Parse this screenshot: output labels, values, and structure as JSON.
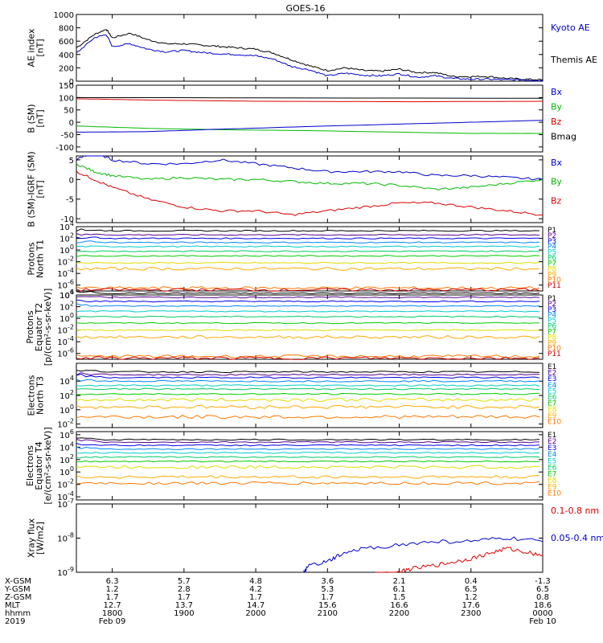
{
  "title": "GOES-16",
  "colors": {
    "blue": "#0000cc",
    "red": "#dd0000",
    "green": "#00bb00",
    "black": "#000000",
    "p": [
      "#000000",
      "#5a0090",
      "#0000ee",
      "#0088ff",
      "#00cccc",
      "#00cc66",
      "#00cc00",
      "#dddd00",
      "#ffaa00",
      "#ff7700",
      "#cc0000",
      "#880000"
    ]
  },
  "chart_data": [
    {
      "type": "line",
      "id": "ae",
      "ylabel": "AE index\n[nT]",
      "ylim": [
        0,
        1000
      ],
      "yticks": [
        "1000",
        "800",
        "600",
        "400",
        "200",
        "0"
      ],
      "legend": [
        {
          "name": "Kyoto AE",
          "color": "#0000cc"
        },
        {
          "name": "Themis AE",
          "color": "#000000"
        }
      ],
      "series": [
        {
          "name": "Themis AE",
          "color": "#000000",
          "x": [
            1730,
            1745,
            1755,
            1800,
            1815,
            1830,
            1845,
            1900,
            1915,
            1930,
            1945,
            2000,
            2015,
            2030,
            2045,
            2100,
            2115,
            2130,
            2145,
            2200,
            2215,
            2230,
            2245,
            2300,
            2315,
            2330,
            2345,
            2400
          ],
          "y": [
            500,
            700,
            780,
            650,
            720,
            620,
            560,
            560,
            540,
            520,
            500,
            480,
            420,
            320,
            230,
            160,
            200,
            160,
            150,
            180,
            130,
            130,
            70,
            70,
            70,
            40,
            30,
            20
          ]
        },
        {
          "name": "Kyoto AE",
          "color": "#0000cc",
          "x": [
            1730,
            1745,
            1755,
            1800,
            1815,
            1830,
            1845,
            1900,
            1915,
            1930,
            1945,
            2000,
            2015,
            2030,
            2045,
            2100,
            2115,
            2130,
            2145,
            2200,
            2215,
            2230,
            2245,
            2300,
            2315,
            2330,
            2345,
            2400
          ],
          "y": [
            420,
            650,
            700,
            520,
            560,
            480,
            440,
            460,
            430,
            410,
            400,
            380,
            330,
            220,
            170,
            80,
            120,
            90,
            80,
            110,
            60,
            80,
            40,
            30,
            30,
            20,
            20,
            10
          ]
        }
      ]
    },
    {
      "type": "line",
      "id": "bsm",
      "ylabel": "B (SM)\n[nT]",
      "ylim": [
        -120,
        150
      ],
      "yticks": [
        "150",
        "100",
        "50",
        "0",
        "-50",
        "-100"
      ],
      "legend": [
        {
          "name": "Bx",
          "color": "#0000cc"
        },
        {
          "name": "By",
          "color": "#00bb00"
        },
        {
          "name": "Bz",
          "color": "#dd0000"
        },
        {
          "name": "Bmag",
          "color": "#000000"
        }
      ],
      "series": [
        {
          "name": "Bmag",
          "color": "#000000",
          "x": [
            1730,
            2400
          ],
          "y": [
            100,
            97
          ]
        },
        {
          "name": "Bz",
          "color": "#dd0000",
          "x": [
            1730,
            1830,
            2000,
            2200,
            2400
          ],
          "y": [
            95,
            90,
            85,
            83,
            85
          ]
        },
        {
          "name": "By",
          "color": "#00bb00",
          "x": [
            1730,
            1830,
            1930,
            2100,
            2300,
            2400
          ],
          "y": [
            -15,
            -25,
            -30,
            -35,
            -45,
            -45
          ]
        },
        {
          "name": "Bx",
          "color": "#0000cc",
          "x": [
            1730,
            1830,
            1930,
            2100,
            2300,
            2400
          ],
          "y": [
            -40,
            -38,
            -28,
            -15,
            0,
            8
          ]
        }
      ]
    },
    {
      "type": "line",
      "id": "bdiff",
      "ylabel": "B (SM)-IGRF (SM)\n[nT]",
      "ylim": [
        -11,
        6
      ],
      "yticks": [
        "5",
        "0",
        "-5",
        "-10"
      ],
      "legend": [
        {
          "name": "Bx",
          "color": "#0000cc"
        },
        {
          "name": "By",
          "color": "#00bb00"
        },
        {
          "name": "Bz",
          "color": "#dd0000"
        }
      ],
      "series": [
        {
          "name": "Bx",
          "color": "#0000cc",
          "x": [
            1730,
            1745,
            1800,
            1830,
            1900,
            1930,
            2000,
            2030,
            2100,
            2130,
            2200,
            2230,
            2300,
            2330,
            2400
          ],
          "y": [
            5,
            7,
            5,
            4,
            4,
            5,
            4,
            3,
            2,
            2,
            2,
            1,
            1,
            0.5,
            0
          ]
        },
        {
          "name": "By",
          "color": "#00bb00",
          "x": [
            1730,
            1745,
            1800,
            1830,
            1900,
            1930,
            2000,
            2030,
            2100,
            2130,
            2200,
            2230,
            2300,
            2330,
            2400
          ],
          "y": [
            4,
            2,
            1,
            0,
            0.5,
            0,
            0,
            -0.5,
            -1,
            -1,
            -1.5,
            -2.5,
            -2,
            -1,
            0
          ]
        },
        {
          "name": "Bz",
          "color": "#dd0000",
          "x": [
            1730,
            1745,
            1800,
            1830,
            1900,
            1930,
            2000,
            2030,
            2100,
            2130,
            2200,
            2230,
            2300,
            2330,
            2400
          ],
          "y": [
            2,
            0,
            -2,
            -5,
            -7,
            -8,
            -8,
            -9,
            -8,
            -7,
            -6,
            -6,
            -7,
            -8,
            -9
          ]
        }
      ]
    },
    {
      "type": "line",
      "id": "pn",
      "ylabel": "Protons\nNorth T1",
      "log": true,
      "ylim": [
        -7,
        4
      ],
      "yticks": [
        "10^4",
        "10^2",
        "10^0",
        "10^-2",
        "10^-4",
        "10^-6"
      ],
      "legend": [
        {
          "name": "P1"
        },
        {
          "name": "P2"
        },
        {
          "name": "P3"
        },
        {
          "name": "P4"
        },
        {
          "name": "P5"
        },
        {
          "name": "P6"
        },
        {
          "name": "P7"
        },
        {
          "name": "P8"
        },
        {
          "name": "P9"
        },
        {
          "name": "P10"
        },
        {
          "name": "P11"
        }
      ],
      "levels": [
        3.3,
        2.6,
        2.0,
        1.3,
        0.6,
        -0.2,
        -1.0,
        -2.2,
        -3.2,
        -6.5,
        -6.8
      ]
    },
    {
      "type": "line",
      "id": "pe",
      "ylabel": "Protons\nEquator T2\n[p/(cm²-s-sr-keV)]",
      "log": true,
      "ylim": [
        -7,
        4
      ],
      "yticks": [
        "10^6",
        "10^4",
        "10^2",
        "10^0",
        "10^-2",
        "10^-4",
        "10^-6"
      ],
      "legend": [
        {
          "name": "P1"
        },
        {
          "name": "P2"
        },
        {
          "name": "P3"
        },
        {
          "name": "P4"
        },
        {
          "name": "P5"
        },
        {
          "name": "P6"
        },
        {
          "name": "P7"
        },
        {
          "name": "P8"
        },
        {
          "name": "P9"
        },
        {
          "name": "P10"
        },
        {
          "name": "P11"
        }
      ],
      "levels": [
        4.3,
        3.6,
        2.9,
        2.1,
        1.2,
        0.3,
        -0.8,
        -2.0,
        -3.2,
        -6.5,
        -6.8
      ]
    },
    {
      "type": "line",
      "id": "en",
      "ylabel": "Electrons\nNorth T3",
      "log": true,
      "ylim": [
        -2.5,
        6.5
      ],
      "yticks": [
        "10^4",
        "10^2",
        "10^0",
        "10^-2"
      ],
      "legend": [
        {
          "name": "E1"
        },
        {
          "name": "E2"
        },
        {
          "name": "E3"
        },
        {
          "name": "E4"
        },
        {
          "name": "E5"
        },
        {
          "name": "E6"
        },
        {
          "name": "E7"
        },
        {
          "name": "E8"
        },
        {
          "name": "E9"
        },
        {
          "name": "E10"
        }
      ],
      "levels": [
        5.3,
        4.9,
        4.5,
        4.0,
        3.4,
        2.9,
        2.2,
        1.4,
        0.4,
        -1.0
      ]
    },
    {
      "type": "line",
      "id": "ee",
      "ylabel": "Electrons\nEquator T4\n[e/(cm²-s-sr-keV)]",
      "log": true,
      "ylim": [
        -4.5,
        6.5
      ],
      "yticks": [
        "10^6",
        "10^4",
        "10^2",
        "10^0",
        "10^-2",
        "10^-4"
      ],
      "legend": [
        {
          "name": "E1"
        },
        {
          "name": "E2"
        },
        {
          "name": "E3"
        },
        {
          "name": "E4"
        },
        {
          "name": "E5"
        },
        {
          "name": "E6"
        },
        {
          "name": "E7"
        },
        {
          "name": "E8"
        },
        {
          "name": "E9"
        },
        {
          "name": "E10"
        }
      ],
      "levels": [
        5.2,
        4.8,
        4.3,
        3.7,
        3.1,
        2.4,
        1.7,
        0.8,
        -0.8,
        -1.8
      ]
    },
    {
      "type": "line",
      "id": "xray",
      "ylabel": "Xray flux\n[W/m2]",
      "log": true,
      "ylim": [
        -9,
        -7
      ],
      "yticks": [
        "10^-7",
        "10^-8",
        "10^-9"
      ],
      "legend": [
        {
          "name": "0.1-0.8 nm",
          "color": "#dd0000"
        },
        {
          "name": "0.05-0.4 nm",
          "color": "#0000cc"
        }
      ],
      "series": [
        {
          "name": "0.05-0.4 nm",
          "color": "#0000cc",
          "x": [
            2040,
            2045,
            2100,
            2110,
            2130,
            2200,
            2230,
            2300,
            2330,
            2400
          ],
          "y": [
            -9,
            -8.8,
            -8.7,
            -8.5,
            -8.3,
            -8.2,
            -8.1,
            -8.1,
            -8.0,
            -8.1
          ]
        },
        {
          "name": "0.1-0.8 nm",
          "color": "#dd0000",
          "x": [
            2140,
            2200,
            2210,
            2230,
            2245,
            2300,
            2315,
            2330,
            2345,
            2400
          ],
          "y": [
            -9,
            -9,
            -8.9,
            -8.8,
            -8.7,
            -8.6,
            -8.45,
            -8.3,
            -8.4,
            -8.5
          ]
        }
      ]
    }
  ],
  "xaxis": {
    "row_labels": [
      "X-GSM",
      "Y-GSM",
      "Z-GSM",
      "MLT",
      "hhmm",
      "2019"
    ],
    "columns": [
      {
        "v": [
          "6.3",
          "1.2",
          "1.7",
          "12.7",
          "1800",
          "Feb 09"
        ]
      },
      {
        "v": [
          "5.7",
          "2.8",
          "1.7",
          "13.7",
          "1900",
          ""
        ]
      },
      {
        "v": [
          "4.8",
          "4.2",
          "1.7",
          "14.7",
          "2000",
          ""
        ]
      },
      {
        "v": [
          "3.6",
          "5.3",
          "1.7",
          "15.6",
          "2100",
          ""
        ]
      },
      {
        "v": [
          "2.1",
          "6.1",
          "1.5",
          "16.6",
          "2200",
          ""
        ]
      },
      {
        "v": [
          "0.4",
          "6.5",
          "1.2",
          "17.6",
          "2300",
          ""
        ]
      },
      {
        "v": [
          "-1.3",
          "6.5",
          "0.8",
          "18.6",
          "0000",
          "Feb 10"
        ]
      }
    ]
  }
}
